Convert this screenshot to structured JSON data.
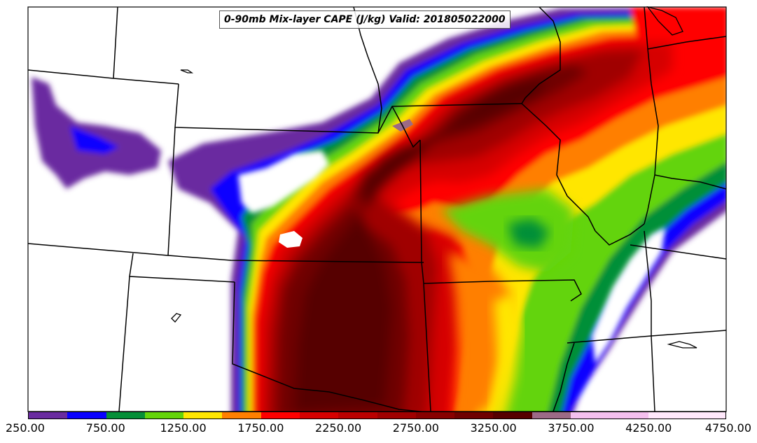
{
  "title": "0-90mb Mix-layer CAPE (J/kg) Valid: 201805022000",
  "colorbar": {
    "min": 250,
    "max": 4750,
    "segments": [
      {
        "from": 250,
        "to": 500,
        "color": "#6a2ca0"
      },
      {
        "from": 500,
        "to": 750,
        "color": "#0a00ff"
      },
      {
        "from": 750,
        "to": 1000,
        "color": "#068f38"
      },
      {
        "from": 1000,
        "to": 1250,
        "color": "#64d40a"
      },
      {
        "from": 1250,
        "to": 1500,
        "color": "#ffe600"
      },
      {
        "from": 1500,
        "to": 1750,
        "color": "#ff7f00"
      },
      {
        "from": 1750,
        "to": 2000,
        "color": "#ff0000"
      },
      {
        "from": 2000,
        "to": 2250,
        "color": "#d60000"
      },
      {
        "from": 2250,
        "to": 2500,
        "color": "#bb0000"
      },
      {
        "from": 2500,
        "to": 2750,
        "color": "#a00000"
      },
      {
        "from": 2750,
        "to": 3000,
        "color": "#880000"
      },
      {
        "from": 3000,
        "to": 3250,
        "color": "#6f0000"
      },
      {
        "from": 3250,
        "to": 3500,
        "color": "#560000"
      },
      {
        "from": 3500,
        "to": 3750,
        "color": "#9c6a86"
      },
      {
        "from": 3750,
        "to": 4000,
        "color": "#f4c0ee"
      },
      {
        "from": 4000,
        "to": 4250,
        "color": "#f4c0ee"
      },
      {
        "from": 4250,
        "to": 4500,
        "color": "#ffe8fb"
      },
      {
        "from": 4500,
        "to": 4750,
        "color": "#ffe8fb"
      }
    ],
    "ticks": [
      "250.00",
      "750.00",
      "1250.00",
      "1750.00",
      "2250.00",
      "2750.00",
      "3250.00",
      "3750.00",
      "4250.00",
      "4750.00"
    ]
  }
}
